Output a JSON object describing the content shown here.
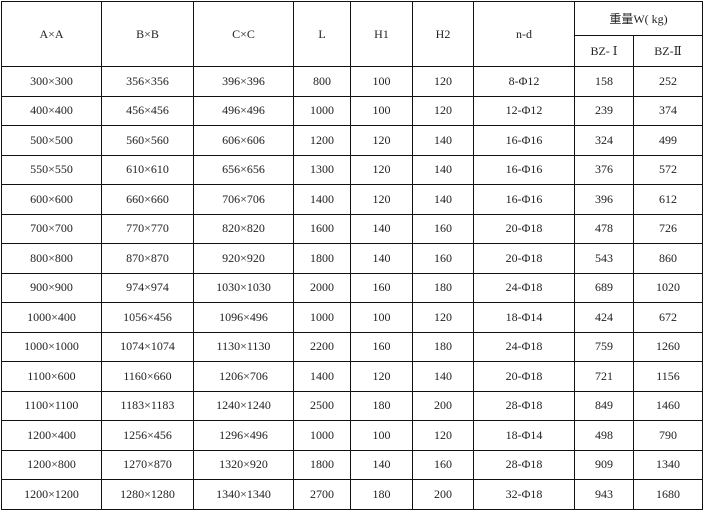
{
  "table": {
    "headers": [
      "A×A",
      "B×B",
      "C×C",
      "L",
      "H1",
      "H2",
      "n-d"
    ],
    "weight_group": "重量W( kg)",
    "weight_sub": [
      "BZ- Ⅰ",
      "BZ-Ⅱ"
    ],
    "rows": [
      [
        "300×300",
        "356×356",
        "396×396",
        "800",
        "100",
        "120",
        "8-Φ12",
        "158",
        "252"
      ],
      [
        "400×400",
        "456×456",
        "496×496",
        "1000",
        "100",
        "120",
        "12-Φ12",
        "239",
        "374"
      ],
      [
        "500×500",
        "560×560",
        "606×606",
        "1200",
        "120",
        "140",
        "16-Φ16",
        "324",
        "499"
      ],
      [
        "550×550",
        "610×610",
        "656×656",
        "1300",
        "120",
        "140",
        "16-Φ16",
        "376",
        "572"
      ],
      [
        "600×600",
        "660×660",
        "706×706",
        "1400",
        "120",
        "140",
        "16-Φ16",
        "396",
        "612"
      ],
      [
        "700×700",
        "770×770",
        "820×820",
        "1600",
        "140",
        "160",
        "20-Φ18",
        "478",
        "726"
      ],
      [
        "800×800",
        "870×870",
        "920×920",
        "1800",
        "140",
        "160",
        "20-Φ18",
        "543",
        "860"
      ],
      [
        "900×900",
        "974×974",
        "1030×1030",
        "2000",
        "160",
        "180",
        "24-Φ18",
        "689",
        "1020"
      ],
      [
        "1000×400",
        "1056×456",
        "1096×496",
        "1000",
        "100",
        "120",
        "18-Φ14",
        "424",
        "672"
      ],
      [
        "1000×1000",
        "1074×1074",
        "1130×1130",
        "2200",
        "160",
        "180",
        "24-Φ18",
        "759",
        "1260"
      ],
      [
        "1100×600",
        "1160×660",
        "1206×706",
        "1400",
        "120",
        "140",
        "20-Φ18",
        "721",
        "1156"
      ],
      [
        "1100×1100",
        "1183×1183",
        "1240×1240",
        "2500",
        "180",
        "200",
        "28-Φ18",
        "849",
        "1460"
      ],
      [
        "1200×400",
        "1256×456",
        "1296×496",
        "1000",
        "100",
        "120",
        "18-Φ14",
        "498",
        "790"
      ],
      [
        "1200×800",
        "1270×870",
        "1320×920",
        "1800",
        "140",
        "160",
        "28-Φ18",
        "909",
        "1340"
      ],
      [
        "1200×1200",
        "1280×1280",
        "1340×1340",
        "2700",
        "180",
        "200",
        "32-Φ18",
        "943",
        "1680"
      ]
    ]
  }
}
